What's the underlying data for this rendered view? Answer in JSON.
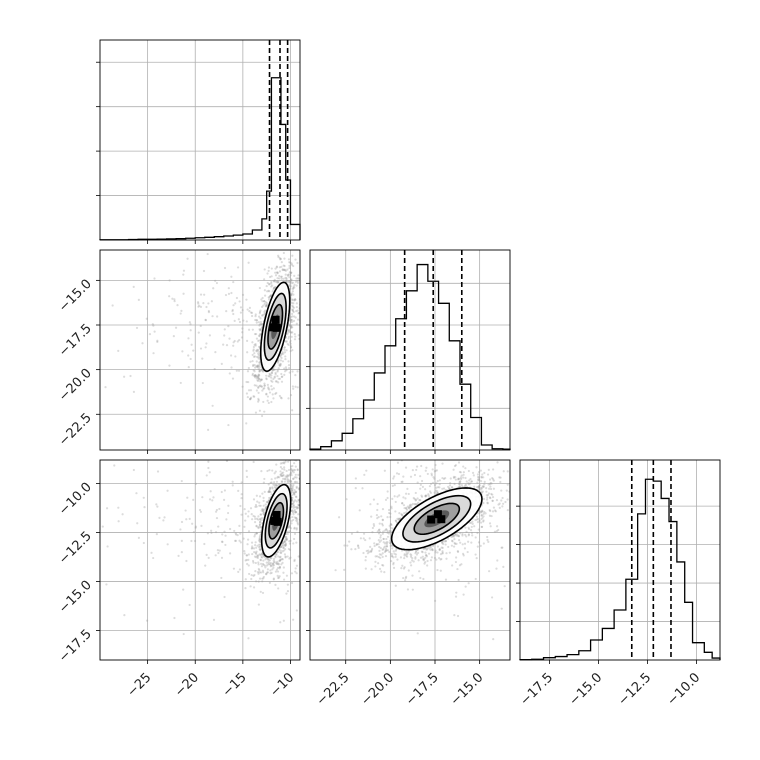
{
  "chart_data": {
    "type": "corner",
    "grid": true,
    "parameters": [
      {
        "index": 0,
        "range": [
          -30,
          -9
        ],
        "ticks": [
          -25,
          -20,
          -15,
          -10
        ],
        "tick_labels": [
          "−25",
          "−20",
          "−15",
          "−10"
        ],
        "quantiles": [
          -12.2,
          -11.1,
          -10.3
        ]
      },
      {
        "index": 1,
        "range": [
          -24.5,
          -13.3
        ],
        "ticks": [
          -22.5,
          -20.0,
          -17.5,
          -15.0
        ],
        "tick_labels": [
          "−22.5",
          "−20.0",
          "−17.5",
          "−15.0"
        ],
        "quantiles": [
          -19.2,
          -17.6,
          -16.0
        ]
      },
      {
        "index": 2,
        "range": [
          -19.0,
          -8.8
        ],
        "ticks": [
          -17.5,
          -15.0,
          -12.5,
          -10.0
        ],
        "tick_labels": [
          "−17.5",
          "−15.0",
          "−12.5",
          "−10.0"
        ],
        "quantiles": [
          -13.3,
          -12.2,
          -11.3
        ]
      }
    ],
    "histograms": [
      {
        "param": 0,
        "bin_edges": [
          -30,
          -29,
          -28,
          -27,
          -26,
          -25,
          -24,
          -23,
          -22,
          -21,
          -20,
          -19,
          -18,
          -17,
          -16,
          -15,
          -14,
          -13,
          -12.5,
          -12,
          -11.5,
          -11,
          -10.5,
          -10,
          -9.5,
          -9
        ],
        "counts": [
          1,
          1,
          1,
          2,
          3,
          3,
          4,
          5,
          6,
          8,
          10,
          12,
          15,
          18,
          22,
          27,
          45,
          95,
          220,
          730,
          730,
          520,
          270,
          70,
          70
        ],
        "ymax": 900,
        "yticks": [
          200,
          400,
          600,
          800
        ]
      },
      {
        "param": 1,
        "bin_edges": [
          -24.5,
          -23.9,
          -23.3,
          -22.7,
          -22.1,
          -21.5,
          -20.9,
          -20.3,
          -19.7,
          -19.1,
          -18.5,
          -17.9,
          -17.3,
          -16.7,
          -16.1,
          -15.5,
          -14.9,
          -14.3,
          -13.7,
          -13.3
        ],
        "counts": [
          2,
          8,
          22,
          40,
          75,
          120,
          185,
          250,
          315,
          382,
          445,
          405,
          352,
          262,
          158,
          78,
          12,
          3,
          2
        ],
        "ymax": 480,
        "yticks": [
          100,
          200,
          300,
          400
        ]
      },
      {
        "param": 2,
        "bin_edges": [
          -19.0,
          -18.4,
          -17.8,
          -17.2,
          -16.6,
          -16.0,
          -15.4,
          -14.8,
          -14.2,
          -13.6,
          -13.0,
          -12.6,
          -12.2,
          -11.8,
          -11.4,
          -11.0,
          -10.6,
          -10.2,
          -9.6,
          -9.2,
          -8.8
        ],
        "counts": [
          1,
          2,
          6,
          9,
          14,
          24,
          52,
          82,
          130,
          210,
          380,
          470,
          465,
          420,
          360,
          255,
          150,
          45,
          20,
          5
        ],
        "ymax": 520,
        "yticks": [
          100,
          200,
          300,
          400
        ]
      }
    ],
    "joint_panels": [
      {
        "x_param": 0,
        "y_param": 1,
        "mean": [
          -11.6,
          -17.6
        ],
        "cov": [
          [
            0.58,
            0.55
          ],
          [
            0.55,
            1.55
          ]
        ]
      },
      {
        "x_param": 0,
        "y_param": 2,
        "mean": [
          -11.5,
          -11.9
        ],
        "cov": [
          [
            0.58,
            0.38
          ],
          [
            0.38,
            0.85
          ]
        ]
      },
      {
        "x_param": 1,
        "y_param": 2,
        "mean": [
          -17.4,
          -11.8
        ],
        "cov": [
          [
            1.6,
            0.64
          ],
          [
            0.64,
            0.62
          ]
        ]
      }
    ]
  }
}
